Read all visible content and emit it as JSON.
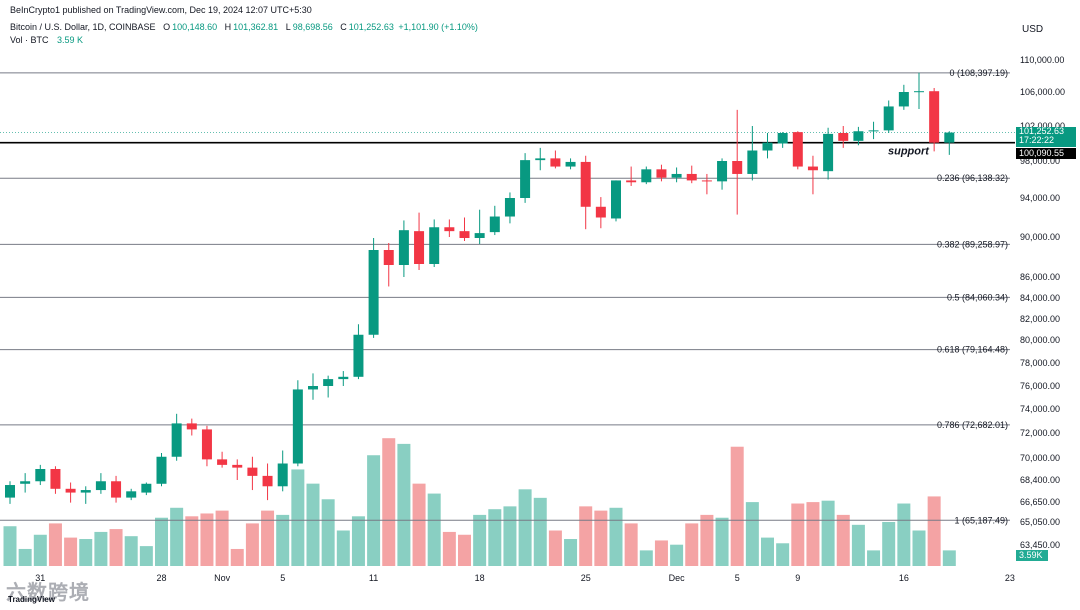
{
  "header": {
    "published": "BeInCrypto1 published on TradingView.com, Dec 19, 2024 12:07 UTC+5:30",
    "symbol": "Bitcoin / U.S. Dollar, 1D, COINBASE",
    "o_label": "O",
    "o_value": "100,148.60",
    "h_label": "H",
    "h_value": "101,362.81",
    "l_label": "L",
    "l_value": "98,698.56",
    "c_label": "C",
    "c_value": "101,252.63",
    "change": "+1,101.90 (+1.10%)",
    "vol_label": "Vol · BTC",
    "vol_value": "3.59 K",
    "currency": "USD"
  },
  "price_tags": {
    "last_price": "101,252.63",
    "countdown": "17:22:22",
    "support_price": "100,090.55",
    "volume_tag": "3.59K"
  },
  "watermark": {
    "text": "六数跨境",
    "tv": "TradingView"
  },
  "colors": {
    "up": "#089981",
    "down": "#f23645",
    "up_vol": "#89cfc2",
    "down_vol": "#f4a3a4",
    "fib": "#787b86"
  },
  "chart_data": {
    "type": "candlestick",
    "title": "Bitcoin / U.S. Dollar, 1D, COINBASE",
    "y_ticks": [
      {
        "value": 110000,
        "label": "110,000.00"
      },
      {
        "value": 106000,
        "label": "106,000.00"
      },
      {
        "value": 102000,
        "label": "102,000.00"
      },
      {
        "value": 98000,
        "label": "98,000.00"
      },
      {
        "value": 94000,
        "label": "94,000.00"
      },
      {
        "value": 90000,
        "label": "90,000.00"
      },
      {
        "value": 86000,
        "label": "86,000.00"
      },
      {
        "value": 84000,
        "label": "84,000.00"
      },
      {
        "value": 82000,
        "label": "82,000.00"
      },
      {
        "value": 80000,
        "label": "80,000.00"
      },
      {
        "value": 78000,
        "label": "78,000.00"
      },
      {
        "value": 76000,
        "label": "76,000.00"
      },
      {
        "value": 74000,
        "label": "74,000.00"
      },
      {
        "value": 72000,
        "label": "72,000.00"
      },
      {
        "value": 70000,
        "label": "70,000.00"
      },
      {
        "value": 68400,
        "label": "68,400.00"
      },
      {
        "value": 66650,
        "label": "66,650.00"
      },
      {
        "value": 65050,
        "label": "65,050.00"
      },
      {
        "value": 63450,
        "label": "63,450.00"
      }
    ],
    "x_ticks": [
      {
        "i": 2,
        "label": "31"
      },
      {
        "i": 10,
        "label": "28"
      },
      {
        "i": 14,
        "label": "Nov"
      },
      {
        "i": 18,
        "label": "5"
      },
      {
        "i": 24,
        "label": "11"
      },
      {
        "i": 31,
        "label": "18"
      },
      {
        "i": 38,
        "label": "25"
      },
      {
        "i": 44,
        "label": "Dec"
      },
      {
        "i": 48,
        "label": "5"
      },
      {
        "i": 52,
        "label": "9"
      },
      {
        "i": 59,
        "label": "16"
      },
      {
        "i": 66,
        "label": "23"
      }
    ],
    "fib_levels": [
      {
        "value": 108397.19,
        "label": "0 (108,397.19)"
      },
      {
        "value": 96138.32,
        "label": "0.236 (96,138.32)"
      },
      {
        "value": 89258.97,
        "label": "0.382 (89,258.97)"
      },
      {
        "value": 84060.34,
        "label": "0.5 (84,060.34)"
      },
      {
        "value": 79164.48,
        "label": "0.618 (79,164.48)"
      },
      {
        "value": 72682.01,
        "label": "0.786 (72,682.01)"
      },
      {
        "value": 65187.49,
        "label": "1 (65,187.49)"
      }
    ],
    "support": {
      "value": 100090.55,
      "label": "support"
    },
    "candles": [
      {
        "o": 67000,
        "h": 68300,
        "l": 66500,
        "c": 68000,
        "v": 28
      },
      {
        "o": 68100,
        "h": 68900,
        "l": 67400,
        "c": 68300,
        "v": 12
      },
      {
        "o": 68300,
        "h": 69500,
        "l": 68000,
        "c": 69200,
        "v": 22
      },
      {
        "o": 69200,
        "h": 69400,
        "l": 67300,
        "c": 67700,
        "v": 30
      },
      {
        "o": 67700,
        "h": 68200,
        "l": 66600,
        "c": 67400,
        "v": 20
      },
      {
        "o": 67400,
        "h": 67900,
        "l": 66500,
        "c": 67600,
        "v": 19
      },
      {
        "o": 67600,
        "h": 68900,
        "l": 67300,
        "c": 68300,
        "v": 24
      },
      {
        "o": 68300,
        "h": 68700,
        "l": 66600,
        "c": 67000,
        "v": 26
      },
      {
        "o": 67000,
        "h": 67700,
        "l": 66800,
        "c": 67500,
        "v": 21
      },
      {
        "o": 67400,
        "h": 68200,
        "l": 67200,
        "c": 68100,
        "v": 14
      },
      {
        "o": 68100,
        "h": 70400,
        "l": 67900,
        "c": 70100,
        "v": 34
      },
      {
        "o": 70100,
        "h": 73600,
        "l": 69800,
        "c": 72800,
        "v": 41
      },
      {
        "o": 72800,
        "h": 73200,
        "l": 71800,
        "c": 72300,
        "v": 35
      },
      {
        "o": 72300,
        "h": 72600,
        "l": 69400,
        "c": 69900,
        "v": 37
      },
      {
        "o": 69900,
        "h": 70500,
        "l": 69300,
        "c": 69500,
        "v": 39
      },
      {
        "o": 69500,
        "h": 69900,
        "l": 68400,
        "c": 69300,
        "v": 12
      },
      {
        "o": 69300,
        "h": 70100,
        "l": 67600,
        "c": 68700,
        "v": 30
      },
      {
        "o": 68700,
        "h": 69600,
        "l": 66800,
        "c": 67900,
        "v": 39
      },
      {
        "o": 67900,
        "h": 70600,
        "l": 67500,
        "c": 69600,
        "v": 36
      },
      {
        "o": 69600,
        "h": 76500,
        "l": 69400,
        "c": 75700,
        "v": 68
      },
      {
        "o": 75700,
        "h": 77100,
        "l": 74800,
        "c": 76000,
        "v": 58
      },
      {
        "o": 76000,
        "h": 76900,
        "l": 75000,
        "c": 76600,
        "v": 47
      },
      {
        "o": 76600,
        "h": 77300,
        "l": 76000,
        "c": 76800,
        "v": 25
      },
      {
        "o": 76800,
        "h": 81500,
        "l": 76600,
        "c": 80500,
        "v": 35
      },
      {
        "o": 80500,
        "h": 89900,
        "l": 80200,
        "c": 88700,
        "v": 78
      },
      {
        "o": 88700,
        "h": 89400,
        "l": 85100,
        "c": 87200,
        "v": 90
      },
      {
        "o": 87200,
        "h": 91700,
        "l": 86000,
        "c": 90700,
        "v": 86
      },
      {
        "o": 90600,
        "h": 92500,
        "l": 86700,
        "c": 87300,
        "v": 58
      },
      {
        "o": 87300,
        "h": 91800,
        "l": 87000,
        "c": 91000,
        "v": 51
      },
      {
        "o": 91000,
        "h": 91800,
        "l": 90000,
        "c": 90600,
        "v": 24
      },
      {
        "o": 90600,
        "h": 92000,
        "l": 89600,
        "c": 89900,
        "v": 22
      },
      {
        "o": 89900,
        "h": 92800,
        "l": 89300,
        "c": 90400,
        "v": 36
      },
      {
        "o": 90500,
        "h": 93200,
        "l": 90200,
        "c": 92100,
        "v": 40
      },
      {
        "o": 92100,
        "h": 94600,
        "l": 91400,
        "c": 94000,
        "v": 42
      },
      {
        "o": 94000,
        "h": 98900,
        "l": 93500,
        "c": 98100,
        "v": 54
      },
      {
        "o": 98100,
        "h": 99500,
        "l": 97000,
        "c": 98300,
        "v": 48
      },
      {
        "o": 98300,
        "h": 99200,
        "l": 97200,
        "c": 97400,
        "v": 25
      },
      {
        "o": 97400,
        "h": 98300,
        "l": 97100,
        "c": 97900,
        "v": 19
      },
      {
        "o": 97900,
        "h": 98600,
        "l": 90800,
        "c": 93100,
        "v": 42
      },
      {
        "o": 93100,
        "h": 94100,
        "l": 90900,
        "c": 92000,
        "v": 39
      },
      {
        "o": 91900,
        "h": 95900,
        "l": 91600,
        "c": 95900,
        "v": 41
      },
      {
        "o": 95900,
        "h": 97400,
        "l": 95300,
        "c": 95700,
        "v": 30
      },
      {
        "o": 95700,
        "h": 97400,
        "l": 95500,
        "c": 97100,
        "v": 11
      },
      {
        "o": 97100,
        "h": 97600,
        "l": 95800,
        "c": 96200,
        "v": 18
      },
      {
        "o": 96200,
        "h": 97300,
        "l": 95700,
        "c": 96600,
        "v": 15
      },
      {
        "o": 96600,
        "h": 97500,
        "l": 95600,
        "c": 95900,
        "v": 30
      },
      {
        "o": 95900,
        "h": 96600,
        "l": 94400,
        "c": 95800,
        "v": 36
      },
      {
        "o": 95800,
        "h": 98300,
        "l": 94900,
        "c": 98000,
        "v": 34
      },
      {
        "o": 98000,
        "h": 103900,
        "l": 92300,
        "c": 96600,
        "v": 84
      },
      {
        "o": 96600,
        "h": 102000,
        "l": 95900,
        "c": 99200,
        "v": 45
      },
      {
        "o": 99200,
        "h": 101200,
        "l": 98300,
        "c": 100100,
        "v": 20
      },
      {
        "o": 100000,
        "h": 101300,
        "l": 99500,
        "c": 101200,
        "v": 16
      },
      {
        "o": 101300,
        "h": 101400,
        "l": 97100,
        "c": 97400,
        "v": 44
      },
      {
        "o": 97400,
        "h": 98600,
        "l": 94400,
        "c": 97000,
        "v": 45
      },
      {
        "o": 96900,
        "h": 101800,
        "l": 96000,
        "c": 101100,
        "v": 46
      },
      {
        "o": 101200,
        "h": 102000,
        "l": 99500,
        "c": 100300,
        "v": 36
      },
      {
        "o": 100300,
        "h": 101900,
        "l": 99800,
        "c": 101400,
        "v": 29
      },
      {
        "o": 101400,
        "h": 102500,
        "l": 100500,
        "c": 101500,
        "v": 11
      },
      {
        "o": 101500,
        "h": 105000,
        "l": 101200,
        "c": 104300,
        "v": 31
      },
      {
        "o": 104300,
        "h": 106900,
        "l": 103900,
        "c": 106000,
        "v": 44
      },
      {
        "o": 106000,
        "h": 108400,
        "l": 104000,
        "c": 106100,
        "v": 25
      },
      {
        "o": 106100,
        "h": 106500,
        "l": 99100,
        "c": 100100,
        "v": 49
      },
      {
        "o": 100100,
        "h": 101400,
        "l": 98700,
        "c": 101250,
        "v": 11
      }
    ]
  }
}
